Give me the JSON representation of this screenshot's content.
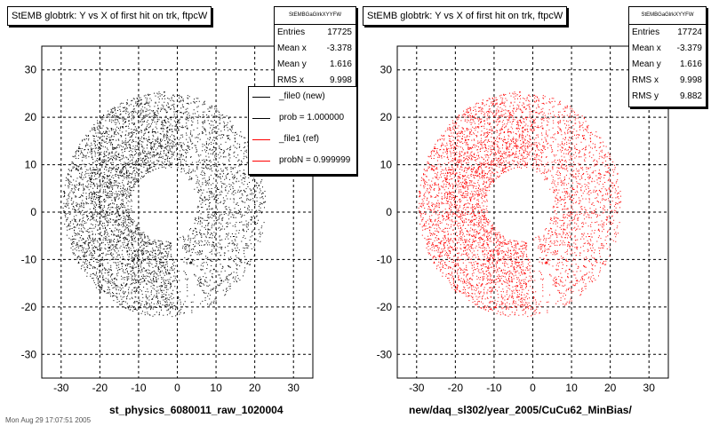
{
  "chart_data": [
    {
      "type": "scatter",
      "title": "StEMB globtrk: Y vs X of first hit on trk, ftpcW",
      "xlabel": "st_physics_6080011_raw_1020004",
      "ylabel": "",
      "xlim": [
        -35,
        35
      ],
      "ylim": [
        -35,
        35
      ],
      "xticks": [
        "-30",
        "-20",
        "-10",
        "0",
        "10",
        "20",
        "30"
      ],
      "yticks": [
        "-30",
        "-20",
        "-10",
        "0",
        "10",
        "20",
        "30"
      ],
      "grid": true,
      "marker_color": "#000000",
      "stats": {
        "header": "StEMBGaGlrkXYYFW",
        "rows": [
          {
            "key": "Entries",
            "value": "17725"
          },
          {
            "key": "Mean x",
            "value": "-3.378"
          },
          {
            "key": "Mean y",
            "value": "1.616"
          },
          {
            "key": "RMS x",
            "value": "9.998"
          }
        ]
      },
      "legend": {
        "position": "top-right",
        "entries": [
          {
            "label": "_file0 (new)",
            "color": "#000000"
          },
          {
            "label": "prob = 1.000000",
            "color": "#000000"
          },
          {
            "label": "_file1 (ref)",
            "color": "#ff0000"
          },
          {
            "label": "probN = 0.999999",
            "color": "#ff0000"
          }
        ]
      }
    },
    {
      "type": "scatter",
      "title": "StEMB globtrk: Y vs X of first hit on trk, ftpcW",
      "xlabel": "new/daq_sl302/year_2005/CuCu62_MinBias/",
      "ylabel": "",
      "xlim": [
        -35,
        35
      ],
      "ylim": [
        -35,
        35
      ],
      "xticks": [
        "-30",
        "-20",
        "-10",
        "0",
        "10",
        "20",
        "30"
      ],
      "yticks": [
        "-30",
        "-20",
        "-10",
        "0",
        "10",
        "20",
        "30"
      ],
      "grid": true,
      "marker_color": "#ff0000",
      "stats": {
        "header": "StEMBGaGlrkXYYFW",
        "rows": [
          {
            "key": "Entries",
            "value": "17724"
          },
          {
            "key": "Mean x",
            "value": "-3.379"
          },
          {
            "key": "Mean y",
            "value": "1.616"
          },
          {
            "key": "RMS x",
            "value": "9.998"
          },
          {
            "key": "RMS y",
            "value": "9.882"
          }
        ]
      }
    }
  ],
  "footer": "Mon Aug 29 17:07:51 2005"
}
